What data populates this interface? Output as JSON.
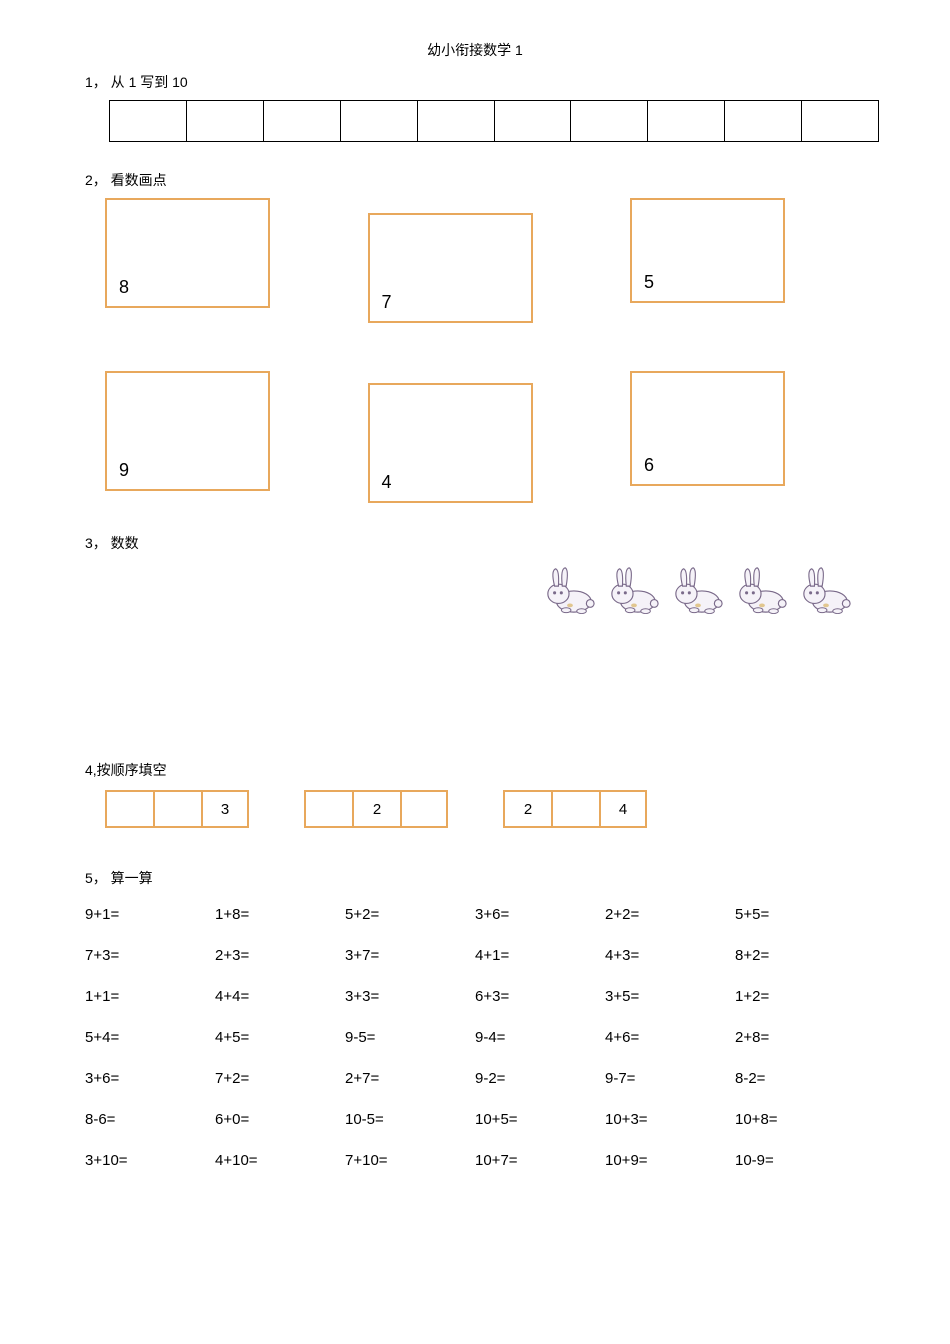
{
  "page_title": "幼小衔接数学 1",
  "section1": {
    "label": "1， 从 1 写到 10",
    "cell_count": 10
  },
  "section2": {
    "label": "2， 看数画点",
    "row1": [
      "8",
      "7",
      "5"
    ],
    "row2": [
      "9",
      "4",
      "6"
    ],
    "border_color": "#e8a85c"
  },
  "section3": {
    "label": "3， 数数",
    "rabbit_count": 5,
    "rabbit_outline": "#7a6a8a",
    "rabbit_fill": "#f5f2f8",
    "rabbit_accent": "#d4a94a"
  },
  "section4": {
    "label": "4,按顺序填空",
    "groups": [
      [
        "",
        "",
        "3"
      ],
      [
        "",
        "2",
        ""
      ],
      [
        "2",
        "",
        "4"
      ]
    ],
    "border_color": "#e8a85c"
  },
  "section5": {
    "label": "5，  算一算",
    "rows": [
      [
        "9+1=",
        "1+8=",
        "5+2=",
        "3+6=",
        "2+2=",
        "5+5="
      ],
      [
        "7+3=",
        "2+3=",
        "3+7=",
        "4+1=",
        "4+3=",
        "8+2="
      ],
      [
        "1+1=",
        "4+4=",
        "3+3=",
        "6+3=",
        "3+5=",
        "1+2="
      ],
      [
        "5+4=",
        "4+5=",
        "9-5=",
        "9-4=",
        "4+6=",
        "2+8="
      ],
      [
        "3+6=",
        "7+2=",
        "2+7=",
        "9-2=",
        "9-7=",
        "8-2="
      ],
      [
        "8-6=",
        "6+0=",
        "10-5=",
        "10+5=",
        "10+3=",
        "10+8="
      ],
      [
        "3+10=",
        "4+10=",
        "7+10=",
        "10+7=",
        "10+9=",
        "10-9="
      ]
    ]
  },
  "colors": {
    "text": "#000000",
    "background": "#ffffff",
    "box_border": "#e8a85c"
  }
}
